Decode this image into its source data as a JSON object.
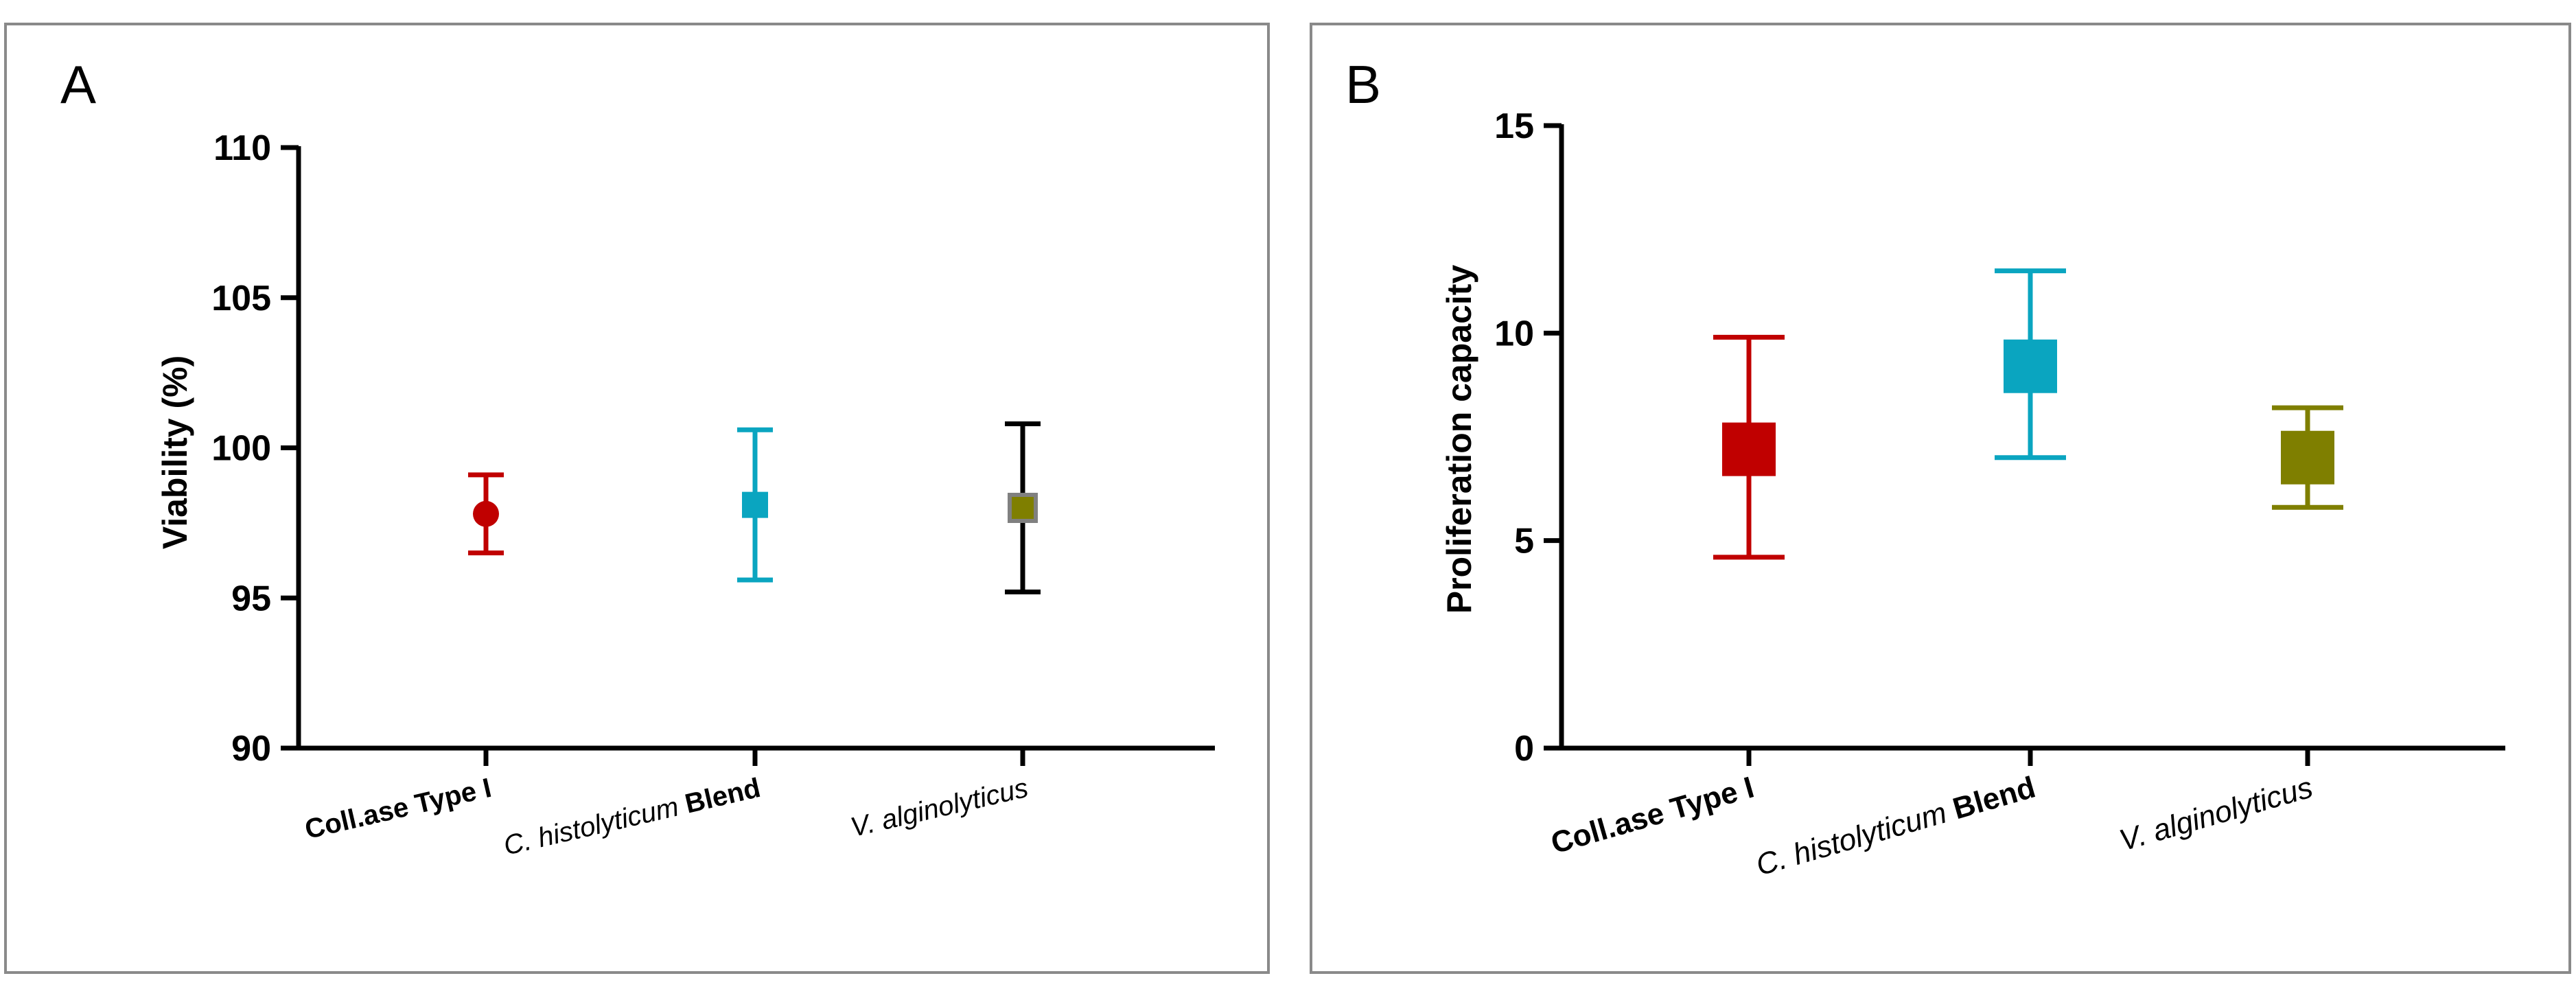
{
  "chart_data": [
    {
      "panel_label": "A",
      "type": "scatter",
      "title": "",
      "xlabel": "",
      "ylabel": "Viability (%)",
      "ylim": [
        90,
        110
      ],
      "yticks": [
        "90",
        "95",
        "100",
        "105",
        "110"
      ],
      "categories": [
        {
          "parts": [
            {
              "text": "Coll.ase Type I",
              "style": "bold"
            }
          ]
        },
        {
          "parts": [
            {
              "text": "C. histolyticum ",
              "style": "italic"
            },
            {
              "text": "Blend",
              "style": "bold"
            }
          ]
        },
        {
          "parts": [
            {
              "text": "V. alginolyticus",
              "style": "italic"
            }
          ]
        }
      ],
      "series": [
        {
          "name": "Coll.ase Type I",
          "mean": 97.8,
          "low": 96.5,
          "high": 99.1,
          "marker": "circle",
          "color": "#c00000",
          "error_color": "#c00000"
        },
        {
          "name": "C. histolyticum Blend",
          "mean": 98.1,
          "low": 95.6,
          "high": 100.6,
          "marker": "square",
          "color": "#0aa5c0",
          "error_color": "#0aa5c0"
        },
        {
          "name": "V. alginolyticus",
          "mean": 98.0,
          "low": 95.2,
          "high": 100.8,
          "marker": "square",
          "color": "#7f7f00",
          "error_color": "#000000",
          "marker_stroke": "#808080"
        }
      ]
    },
    {
      "panel_label": "B",
      "type": "scatter",
      "title": "",
      "xlabel": "",
      "ylabel": "Proliferation capacity",
      "ylim": [
        0,
        15
      ],
      "yticks": [
        "0",
        "5",
        "10",
        "15"
      ],
      "categories": [
        {
          "parts": [
            {
              "text": "Coll.ase Type I",
              "style": "bold"
            }
          ]
        },
        {
          "parts": [
            {
              "text": "C. histolyticum ",
              "style": "italic"
            },
            {
              "text": "Blend",
              "style": "bold"
            }
          ]
        },
        {
          "parts": [
            {
              "text": "V. alginolyticus",
              "style": "italic"
            }
          ]
        }
      ],
      "series": [
        {
          "name": "Coll.ase Type I",
          "mean": 7.2,
          "low": 4.6,
          "high": 9.9,
          "marker": "square",
          "color": "#c00000",
          "error_color": "#c00000"
        },
        {
          "name": "C. histolyticum Blend",
          "mean": 9.2,
          "low": 7.0,
          "high": 11.5,
          "marker": "square",
          "color": "#0aa5c0",
          "error_color": "#0aa5c0"
        },
        {
          "name": "V. alginolyticus",
          "mean": 7.0,
          "low": 5.8,
          "high": 8.2,
          "marker": "square",
          "color": "#7f7f00",
          "error_color": "#7f7f00"
        }
      ]
    }
  ]
}
